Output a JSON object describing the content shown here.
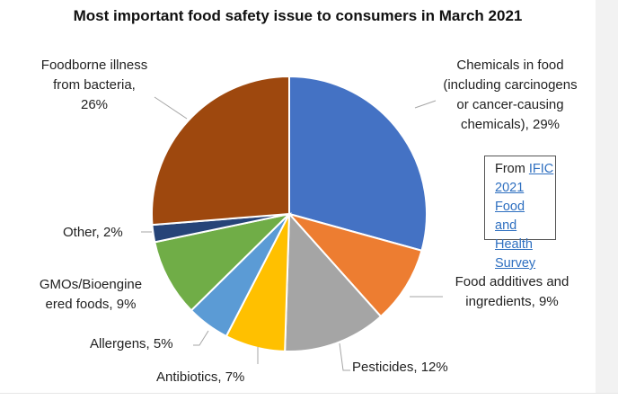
{
  "chart_data": {
    "type": "pie",
    "title": "Most important food safety issue to consumers in March 2021",
    "slices": [
      {
        "label": "Chemicals in food (including carcinogens or cancer-causing chemicals), 29%",
        "value": 29,
        "color": "#4472c4"
      },
      {
        "label": "Food additives and ingredients, 9%",
        "value": 9,
        "color": "#ed7d31"
      },
      {
        "label": "Pesticides, 12%",
        "value": 12,
        "color": "#a5a5a5"
      },
      {
        "label": "Antibiotics, 7%",
        "value": 7,
        "color": "#ffc000"
      },
      {
        "label": "Allergens, 5%",
        "value": 5,
        "color": "#5b9bd5"
      },
      {
        "label": "GMOs/Bioengineered foods, 9%",
        "value": 9,
        "color": "#70ad47"
      },
      {
        "label": "Other, 2%",
        "value": 2,
        "color": "#264478"
      },
      {
        "label": "Foodborne illness from bacteria, 26%",
        "value": 26,
        "color": "#9e480e"
      }
    ],
    "label_lines": {
      "chemicals": [
        "Chemicals in food",
        "(including carcinogens",
        "or cancer-causing",
        "chemicals), 29%"
      ],
      "additives": [
        "Food additives and",
        "ingredients, 9%"
      ],
      "pesticides": [
        "Pesticides, 12%"
      ],
      "antibiotics": [
        "Antibiotics, 7%"
      ],
      "allergens": [
        "Allergens, 5%"
      ],
      "gmos": [
        "GMOs/Bioengine",
        "ered foods, 9%"
      ],
      "other": [
        "Other, 2%"
      ],
      "foodborne": [
        "Foodborne illness",
        "from bacteria,",
        "26%"
      ]
    },
    "legend": "none"
  },
  "source": {
    "prefix": "From ",
    "link_lines": [
      "IFIC",
      "2021 Food",
      "and Health",
      "Survey"
    ]
  }
}
